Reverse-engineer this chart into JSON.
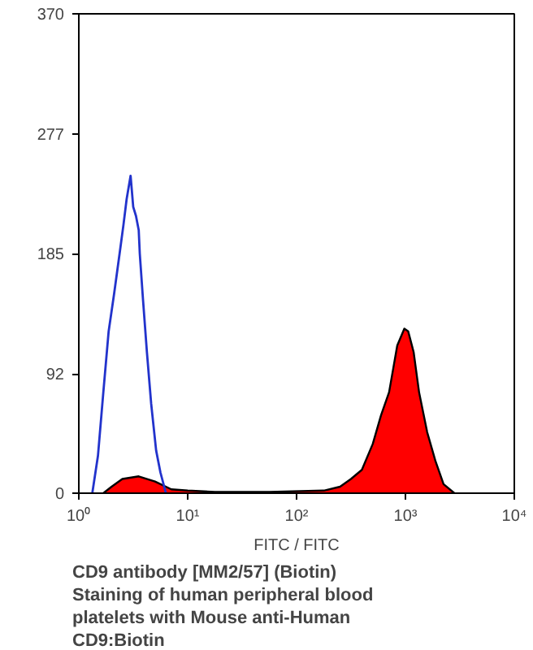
{
  "chart_data": {
    "type": "area",
    "xlabel": "FITC / FITC",
    "log": "x",
    "xlim": [
      1,
      10000
    ],
    "xticks": [
      {
        "value": 1,
        "label": "10⁰"
      },
      {
        "value": 10,
        "label": "10¹"
      },
      {
        "value": 100,
        "label": "10²"
      },
      {
        "value": 1000,
        "label": "10³"
      },
      {
        "value": 10000,
        "label": "10⁴"
      }
    ],
    "ylim": [
      0,
      370
    ],
    "yticks": [
      0,
      92,
      185,
      277,
      370
    ],
    "grid": false,
    "series": [
      {
        "color": "#ff0000",
        "x": [
          1.68,
          2.0,
          2.51,
          3.55,
          5.01,
          7.08,
          10,
          17.8,
          56.2,
          178,
          251,
          316,
          398,
          501,
          596,
          708,
          841,
          977,
          1059,
          1189,
          1334,
          1585,
          1884,
          2239,
          2818
        ],
        "values": [
          0,
          5,
          11,
          13,
          9,
          3,
          2,
          1,
          1,
          2,
          5,
          11,
          18,
          38,
          60,
          78,
          114,
          127,
          125,
          109,
          78,
          47,
          25,
          7,
          0
        ]
      },
      {
        "type": "line",
        "color": "#2233cc",
        "x": [
          1.33,
          1.5,
          1.68,
          1.88,
          2.11,
          2.37,
          2.57,
          2.75,
          2.99,
          3.16,
          3.35,
          3.55,
          3.63,
          3.89,
          4.22,
          4.62,
          5.13,
          5.62,
          6.31
        ],
        "values": [
          0,
          29,
          78,
          125,
          154,
          185,
          207,
          227,
          245,
          221,
          214,
          203,
          185,
          149,
          109,
          69,
          33,
          16,
          0
        ]
      }
    ],
    "annotations": [
      "CD9 antibody [MM2/57] (Biotin)",
      "Staining of human peripheral blood",
      "platelets with Mouse anti-Human",
      "CD9:Biotin"
    ]
  }
}
